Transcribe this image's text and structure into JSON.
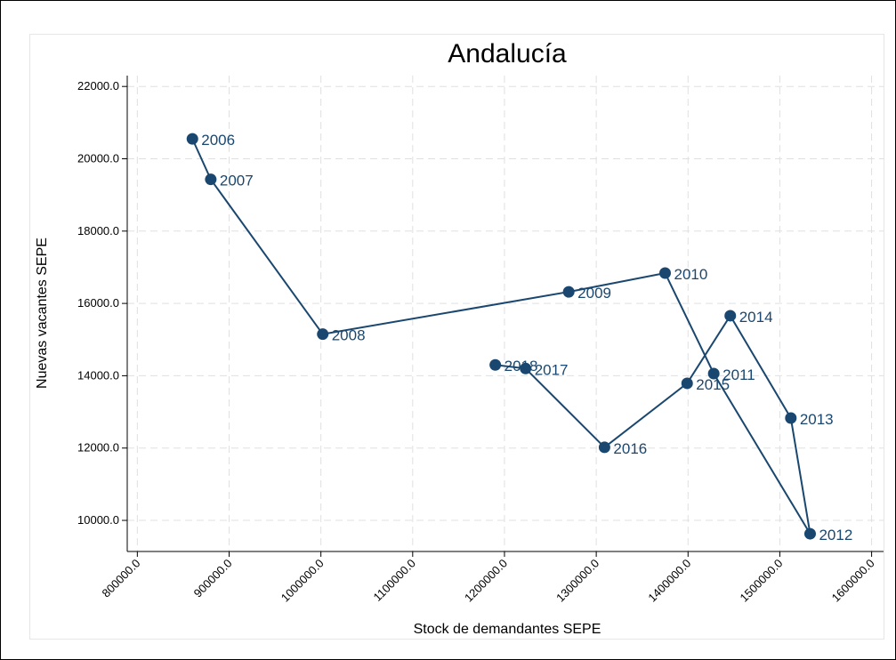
{
  "chart_data": {
    "type": "connected-scatter",
    "title": "Andalucía",
    "x_label": "Stock de demandantes SEPE",
    "y_label": "Nuevas vacantes SEPE",
    "x": [
      860000,
      880000,
      1002000,
      1270000,
      1375000,
      1428000,
      1533000,
      1512000,
      1446000,
      1399000,
      1309000,
      1223000,
      1190000
    ],
    "values": [
      20550,
      19430,
      15150,
      16320,
      16840,
      14060,
      9630,
      12830,
      15660,
      13790,
      12020,
      14200,
      14300
    ],
    "point_labels": [
      "2006",
      "2007",
      "2008",
      "2009",
      "2010",
      "2011",
      "2012",
      "2013",
      "2014",
      "2015",
      "2016",
      "2017",
      "2018"
    ],
    "color": "#1a476f",
    "xlim": [
      789000,
      1613000
    ],
    "ylim": [
      9140,
      22300
    ],
    "xticks": [
      {
        "value": 800000,
        "label": "800000.0"
      },
      {
        "value": 900000,
        "label": "900000.0"
      },
      {
        "value": 1000000,
        "label": "1000000.0"
      },
      {
        "value": 1100000,
        "label": "1100000.0"
      },
      {
        "value": 1200000,
        "label": "1200000.0"
      },
      {
        "value": 1300000,
        "label": "1300000.0"
      },
      {
        "value": 1400000,
        "label": "1400000.0"
      },
      {
        "value": 1500000,
        "label": "1500000.0"
      },
      {
        "value": 1600000,
        "label": "1600000.0"
      }
    ],
    "yticks": [
      {
        "value": 10000,
        "label": "10000.0"
      },
      {
        "value": 12000,
        "label": "12000.0"
      },
      {
        "value": 14000,
        "label": "14000.0"
      },
      {
        "value": 16000,
        "label": "16000.0"
      },
      {
        "value": 18000,
        "label": "18000.0"
      },
      {
        "value": 20000,
        "label": "20000.0"
      },
      {
        "value": 22000,
        "label": "22000.0"
      }
    ],
    "grid": true
  }
}
